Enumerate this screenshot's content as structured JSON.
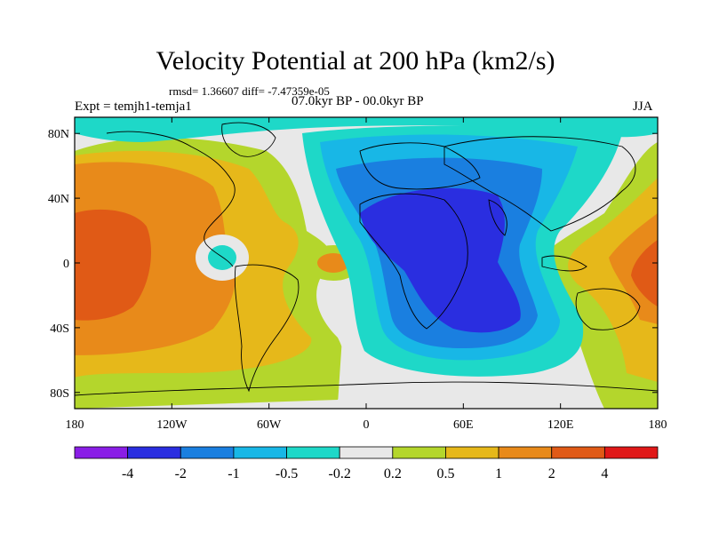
{
  "header": {
    "title": "Velocity Potential at 200 hPa (km2/s)",
    "stats": "rmsd= 1.36607  diff= -7.47359e-05",
    "experiment": "Expt = temjh1-temja1",
    "period": "07.0kyr BP - 00.0kyr BP",
    "season": "JJA"
  },
  "map": {
    "lat_labels": [
      "80N",
      "40N",
      "0",
      "40S",
      "80S"
    ],
    "lat_values": [
      80,
      40,
      0,
      -40,
      -80
    ],
    "lon_labels": [
      "180",
      "120W",
      "60W",
      "0",
      "60E",
      "120E",
      "180"
    ],
    "lon_values": [
      -180,
      -120,
      -60,
      0,
      60,
      120,
      180
    ],
    "lat_range": [
      -90,
      90
    ],
    "lon_range": [
      -180,
      180
    ]
  },
  "colorbar": {
    "labels": [
      "-4",
      "-2",
      "-1",
      "-0.5",
      "-0.2",
      "0.2",
      "0.5",
      "1",
      "2",
      "4"
    ],
    "colors": [
      "#8a1ee6",
      "#2a2ee0",
      "#1a7fe0",
      "#18b7e6",
      "#1ed8c8",
      "#e8e8e8",
      "#b4d62c",
      "#e6b81a",
      "#e88a1a",
      "#e05a16",
      "#e01818"
    ]
  }
}
